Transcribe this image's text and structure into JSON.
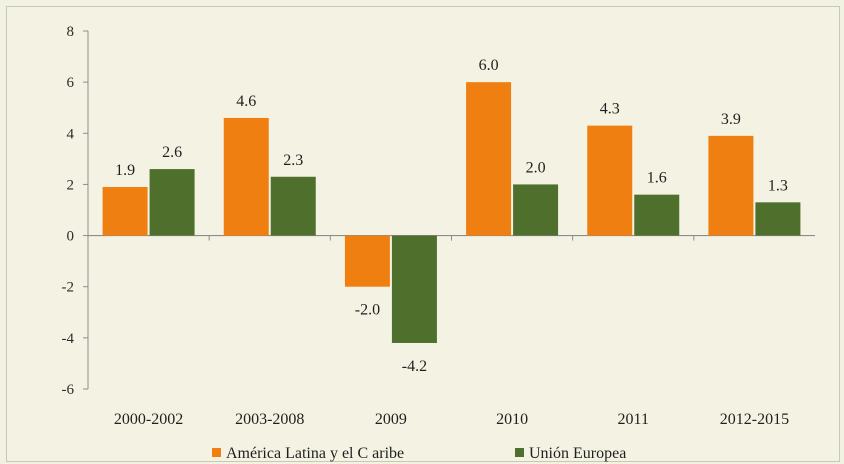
{
  "colors": {
    "background": "#f4f3e3",
    "america_latina": "#f07f12",
    "union_europea": "#4f6f2c",
    "axis": "#8c8c8c"
  },
  "chart_data": {
    "type": "bar",
    "title": "",
    "xlabel": "",
    "ylabel": "",
    "categories": [
      "2000-2002",
      "2003-2008",
      "2009",
      "2010",
      "2011",
      "2012-2015"
    ],
    "series": [
      {
        "name": "América Latina y el C aribe",
        "color": "#f07f12",
        "values": [
          1.9,
          4.6,
          -2.0,
          6.0,
          4.3,
          3.9
        ]
      },
      {
        "name": "Unión Europea",
        "color": "#4f6f2c",
        "values": [
          2.6,
          2.3,
          -4.2,
          2.0,
          1.6,
          1.3
        ]
      }
    ],
    "data_labels": [
      [
        "1.9",
        "4.6",
        "-2.0",
        "6.0",
        "4.3",
        "3.9"
      ],
      [
        "2.6",
        "2.3",
        "-4.2",
        "2.0",
        "1.6",
        "1.3"
      ]
    ],
    "ylim": [
      -6,
      8
    ],
    "yticks": [
      -6,
      -4,
      -2,
      0,
      2,
      4,
      6,
      8
    ],
    "ytick_labels": [
      "-6",
      "-4",
      "-2",
      "0",
      "2",
      "4",
      "6",
      "8"
    ],
    "grid": false,
    "legend_position": "bottom"
  }
}
